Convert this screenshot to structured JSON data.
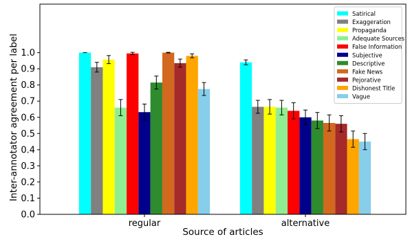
{
  "chart_data": {
    "type": "bar",
    "categories": [
      "regular",
      "alternative"
    ],
    "xlabel": "Source of articles",
    "ylabel": "Inter-annotator agreement per label",
    "ylim": [
      0,
      1.3
    ],
    "yticks": [
      "0.0",
      "0.1",
      "0.2",
      "0.3",
      "0.4",
      "0.5",
      "0.6",
      "0.7",
      "0.8",
      "0.9",
      "1.0"
    ],
    "legend_position": "top-right",
    "grid": false,
    "series": [
      {
        "name": "Satirical",
        "color": "#00ffff",
        "values": [
          1.0,
          0.94
        ],
        "errors": [
          0.0,
          0.015
        ]
      },
      {
        "name": "Exaggeration",
        "color": "#808080",
        "values": [
          0.91,
          0.665
        ],
        "errors": [
          0.03,
          0.04
        ]
      },
      {
        "name": "Propaganda",
        "color": "#ffff00",
        "values": [
          0.957,
          0.665
        ],
        "errors": [
          0.025,
          0.045
        ]
      },
      {
        "name": "Adequate Sources",
        "color": "#90ee90",
        "values": [
          0.66,
          0.66
        ],
        "errors": [
          0.05,
          0.045
        ]
      },
      {
        "name": "False Information",
        "color": "#ff0000",
        "values": [
          0.995,
          0.64
        ],
        "errors": [
          0.007,
          0.05
        ]
      },
      {
        "name": "Subjective",
        "color": "#00008b",
        "values": [
          0.632,
          0.6
        ],
        "errors": [
          0.05,
          0.045
        ]
      },
      {
        "name": "Descriptive",
        "color": "#2e8b2e",
        "values": [
          0.815,
          0.58
        ],
        "errors": [
          0.04,
          0.05
        ]
      },
      {
        "name": "Fake News",
        "color": "#d2691e",
        "values": [
          1.0,
          0.565
        ],
        "errors": [
          0.002,
          0.05
        ]
      },
      {
        "name": "Pejorative",
        "color": "#a52a2a",
        "values": [
          0.935,
          0.56
        ],
        "errors": [
          0.025,
          0.05
        ]
      },
      {
        "name": "Dishonest Title",
        "color": "#ffa500",
        "values": [
          0.98,
          0.465
        ],
        "errors": [
          0.012,
          0.05
        ]
      },
      {
        "name": "Vague",
        "color": "#87ceeb",
        "values": [
          0.775,
          0.45
        ],
        "errors": [
          0.04,
          0.05
        ]
      }
    ]
  }
}
